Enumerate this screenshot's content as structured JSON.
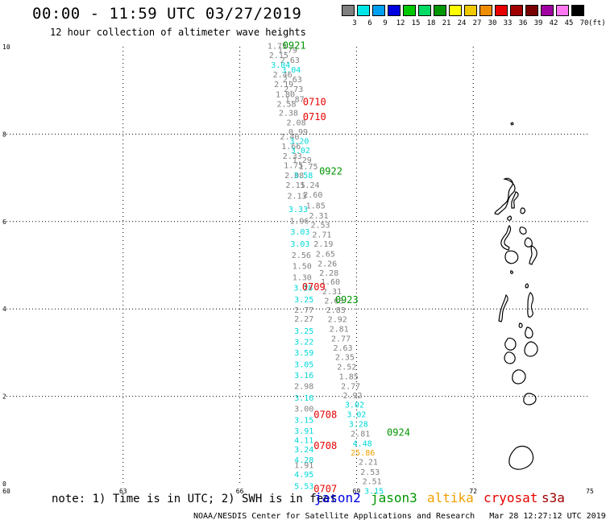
{
  "header": {
    "title": "00:00 - 11:59 UTC 03/27/2019",
    "subtitle": "12 hour collection of altimeter wave heights"
  },
  "legend": {
    "colors": [
      "#808080",
      "#00e6e6",
      "#00a0f0",
      "#0000e0",
      "#00c800",
      "#00dc64",
      "#009600",
      "#ffff00",
      "#f0c800",
      "#f08c00",
      "#e60000",
      "#a00000",
      "#780000",
      "#a000a0",
      "#ff78f0",
      "#000000"
    ],
    "labels": [
      "3",
      "6",
      "9",
      "12",
      "15",
      "18",
      "21",
      "24",
      "27",
      "30",
      "33",
      "36",
      "39",
      "42",
      "45",
      "70"
    ],
    "unit": "(ft)"
  },
  "axes": {
    "x_ticks": [
      "60",
      "63",
      "66",
      "69",
      "72",
      "75"
    ],
    "y_ticks": [
      "0",
      "2",
      "4",
      "6",
      "8",
      "10"
    ]
  },
  "colors": {
    "gray": "#808080",
    "cyan": "#00d8d8",
    "red": "#e60000",
    "green": "#009600",
    "orange": "#f0a000",
    "blue": "#0000e6",
    "s3a": "#a00000"
  },
  "observations": [
    {
      "text": "1.75",
      "c": "gray",
      "lon": 66.71,
      "lat": 9.95
    },
    {
      "text": "1.79",
      "c": "gray",
      "lon": 66.98,
      "lat": 9.86
    },
    {
      "text": "2.15",
      "c": "gray",
      "lon": 66.75,
      "lat": 9.74
    },
    {
      "text": "2.63",
      "c": "gray",
      "lon": 67.04,
      "lat": 9.63
    },
    {
      "text": "3.04",
      "c": "cyan",
      "lon": 66.8,
      "lat": 9.52
    },
    {
      "text": "3.04",
      "c": "cyan",
      "lon": 67.07,
      "lat": 9.41
    },
    {
      "text": "2.46",
      "c": "gray",
      "lon": 66.85,
      "lat": 9.3
    },
    {
      "text": "2.63",
      "c": "gray",
      "lon": 67.1,
      "lat": 9.19
    },
    {
      "text": "2.19",
      "c": "gray",
      "lon": 66.88,
      "lat": 9.08
    },
    {
      "text": "2.73",
      "c": "gray",
      "lon": 67.13,
      "lat": 8.97
    },
    {
      "text": "1.80",
      "c": "gray",
      "lon": 66.92,
      "lat": 8.85
    },
    {
      "text": "1.87",
      "c": "gray",
      "lon": 67.16,
      "lat": 8.74
    },
    {
      "text": "2.58",
      "c": "gray",
      "lon": 66.95,
      "lat": 8.63
    },
    {
      "text": "2.38",
      "c": "gray",
      "lon": 67.0,
      "lat": 8.42
    },
    {
      "text": "2.08",
      "c": "gray",
      "lon": 67.2,
      "lat": 8.2
    },
    {
      "text": "0.99",
      "c": "gray",
      "lon": 67.25,
      "lat": 7.99
    },
    {
      "text": "2.40",
      "c": "gray",
      "lon": 67.03,
      "lat": 7.88
    },
    {
      "text": "3.20",
      "c": "cyan",
      "lon": 67.28,
      "lat": 7.78
    },
    {
      "text": "1.66",
      "c": "gray",
      "lon": 67.07,
      "lat": 7.66
    },
    {
      "text": "3.02",
      "c": "cyan",
      "lon": 67.31,
      "lat": 7.56
    },
    {
      "text": "2.33",
      "c": "gray",
      "lon": 67.1,
      "lat": 7.44
    },
    {
      "text": "1.29",
      "c": "gray",
      "lon": 67.35,
      "lat": 7.34
    },
    {
      "text": "1.75",
      "c": "gray",
      "lon": 67.13,
      "lat": 7.22
    },
    {
      "text": "1.75",
      "c": "gray",
      "lon": 67.51,
      "lat": 7.2
    },
    {
      "text": "2.08",
      "c": "gray",
      "lon": 67.15,
      "lat": 6.99
    },
    {
      "text": "3.58",
      "c": "cyan",
      "lon": 67.38,
      "lat": 6.99
    },
    {
      "text": "2.15",
      "c": "gray",
      "lon": 67.18,
      "lat": 6.77
    },
    {
      "text": "1.24",
      "c": "gray",
      "lon": 67.55,
      "lat": 6.77
    },
    {
      "text": "2.60",
      "c": "gray",
      "lon": 67.63,
      "lat": 6.55
    },
    {
      "text": "2.13",
      "c": "gray",
      "lon": 67.22,
      "lat": 6.52
    },
    {
      "text": "1.85",
      "c": "gray",
      "lon": 67.7,
      "lat": 6.3
    },
    {
      "text": "3.33",
      "c": "cyan",
      "lon": 67.25,
      "lat": 6.22
    },
    {
      "text": "2.31",
      "c": "gray",
      "lon": 67.78,
      "lat": 6.07
    },
    {
      "text": "1.96",
      "c": "gray",
      "lon": 67.28,
      "lat": 5.95
    },
    {
      "text": "2.53",
      "c": "gray",
      "lon": 67.82,
      "lat": 5.86
    },
    {
      "text": "3.03",
      "c": "cyan",
      "lon": 67.3,
      "lat": 5.7
    },
    {
      "text": "2.71",
      "c": "gray",
      "lon": 67.86,
      "lat": 5.64
    },
    {
      "text": "3.03",
      "c": "cyan",
      "lon": 67.3,
      "lat": 5.42
    },
    {
      "text": "2.19",
      "c": "gray",
      "lon": 67.9,
      "lat": 5.42
    },
    {
      "text": "2.56",
      "c": "gray",
      "lon": 67.33,
      "lat": 5.17
    },
    {
      "text": "2.65",
      "c": "gray",
      "lon": 67.95,
      "lat": 5.19
    },
    {
      "text": "2.26",
      "c": "gray",
      "lon": 68.0,
      "lat": 4.97
    },
    {
      "text": "1.50",
      "c": "gray",
      "lon": 67.35,
      "lat": 4.92
    },
    {
      "text": "2.28",
      "c": "gray",
      "lon": 68.04,
      "lat": 4.76
    },
    {
      "text": "1.30",
      "c": "gray",
      "lon": 67.35,
      "lat": 4.66
    },
    {
      "text": "1.60",
      "c": "gray",
      "lon": 68.08,
      "lat": 4.56
    },
    {
      "text": "3.18",
      "c": "cyan",
      "lon": 67.38,
      "lat": 4.42
    },
    {
      "text": "2.31",
      "c": "gray",
      "lon": 68.12,
      "lat": 4.34
    },
    {
      "text": "3.25",
      "c": "cyan",
      "lon": 67.4,
      "lat": 4.15
    },
    {
      "text": "2.63",
      "c": "gray",
      "lon": 68.17,
      "lat": 4.12
    },
    {
      "text": "2.77",
      "c": "gray",
      "lon": 67.4,
      "lat": 3.91
    },
    {
      "text": "2.83",
      "c": "gray",
      "lon": 68.22,
      "lat": 3.91
    },
    {
      "text": "2.27",
      "c": "gray",
      "lon": 67.4,
      "lat": 3.71
    },
    {
      "text": "2.92",
      "c": "gray",
      "lon": 68.26,
      "lat": 3.7
    },
    {
      "text": "3.25",
      "c": "cyan",
      "lon": 67.4,
      "lat": 3.43
    },
    {
      "text": "2.81",
      "c": "gray",
      "lon": 68.3,
      "lat": 3.48
    },
    {
      "text": "3.22",
      "c": "cyan",
      "lon": 67.4,
      "lat": 3.18
    },
    {
      "text": "2.77",
      "c": "gray",
      "lon": 68.35,
      "lat": 3.26
    },
    {
      "text": "3.59",
      "c": "cyan",
      "lon": 67.4,
      "lat": 2.93
    },
    {
      "text": "2.63",
      "c": "gray",
      "lon": 68.4,
      "lat": 3.04
    },
    {
      "text": "3.05",
      "c": "cyan",
      "lon": 67.4,
      "lat": 2.67
    },
    {
      "text": "2.35",
      "c": "gray",
      "lon": 68.45,
      "lat": 2.83
    },
    {
      "text": "2.52",
      "c": "gray",
      "lon": 68.5,
      "lat": 2.61
    },
    {
      "text": "3.16",
      "c": "cyan",
      "lon": 67.4,
      "lat": 2.42
    },
    {
      "text": "1.85",
      "c": "gray",
      "lon": 68.55,
      "lat": 2.39
    },
    {
      "text": "2.98",
      "c": "gray",
      "lon": 67.4,
      "lat": 2.17
    },
    {
      "text": "2.77",
      "c": "gray",
      "lon": 68.6,
      "lat": 2.17
    },
    {
      "text": "2.92",
      "c": "gray",
      "lon": 68.65,
      "lat": 1.96
    },
    {
      "text": "3.16",
      "c": "cyan",
      "lon": 67.4,
      "lat": 1.9
    },
    {
      "text": "3.00",
      "c": "gray",
      "lon": 67.4,
      "lat": 1.65
    },
    {
      "text": "3.02",
      "c": "cyan",
      "lon": 68.7,
      "lat": 1.74
    },
    {
      "text": "3.02",
      "c": "cyan",
      "lon": 68.75,
      "lat": 1.52
    },
    {
      "text": "3.15",
      "c": "cyan",
      "lon": 67.4,
      "lat": 1.39
    },
    {
      "text": "3.28",
      "c": "cyan",
      "lon": 68.8,
      "lat": 1.3
    },
    {
      "text": "3.91",
      "c": "cyan",
      "lon": 67.4,
      "lat": 1.14
    },
    {
      "text": "2.81",
      "c": "gray",
      "lon": 68.85,
      "lat": 1.08
    },
    {
      "text": "4.11",
      "c": "cyan",
      "lon": 67.4,
      "lat": 0.93
    },
    {
      "text": "4.48",
      "c": "cyan",
      "lon": 68.9,
      "lat": 0.86
    },
    {
      "text": "3.24",
      "c": "cyan",
      "lon": 67.4,
      "lat": 0.72
    },
    {
      "text": "25.86",
      "c": "orange",
      "lon": 68.85,
      "lat": 0.65
    },
    {
      "text": "4.28",
      "c": "cyan",
      "lon": 67.4,
      "lat": 0.48
    },
    {
      "text": "2.21",
      "c": "gray",
      "lon": 69.05,
      "lat": 0.43
    },
    {
      "text": "1.91",
      "c": "gray",
      "lon": 67.4,
      "lat": 0.36
    },
    {
      "text": "2.53",
      "c": "gray",
      "lon": 69.1,
      "lat": 0.2
    },
    {
      "text": "4.95",
      "c": "cyan",
      "lon": 67.4,
      "lat": 0.15
    },
    {
      "text": "2.51",
      "c": "gray",
      "lon": 69.15,
      "lat": -0.01
    },
    {
      "text": "5.53",
      "c": "cyan",
      "lon": 67.4,
      "lat": -0.12
    },
    {
      "text": "3.15",
      "c": "cyan",
      "lon": 69.2,
      "lat": -0.23
    }
  ],
  "passes": [
    {
      "text": "0921",
      "c": "green",
      "lon": 67.1,
      "lat": 9.95
    },
    {
      "text": "0710",
      "c": "red",
      "lon": 67.62,
      "lat": 8.66
    },
    {
      "text": "0710",
      "c": "red",
      "lon": 67.62,
      "lat": 8.32
    },
    {
      "text": "0922",
      "c": "green",
      "lon": 68.04,
      "lat": 7.08
    },
    {
      "text": "0709",
      "c": "red",
      "lon": 67.6,
      "lat": 4.43
    },
    {
      "text": "0923",
      "c": "green",
      "lon": 68.45,
      "lat": 4.13
    },
    {
      "text": "0708",
      "c": "red",
      "lon": 67.9,
      "lat": 1.5
    },
    {
      "text": "0924",
      "c": "green",
      "lon": 69.78,
      "lat": 1.1
    },
    {
      "text": "0708",
      "c": "red",
      "lon": 67.9,
      "lat": 0.79
    },
    {
      "text": "0707",
      "c": "red",
      "lon": 67.9,
      "lat": -0.19
    }
  ],
  "footer": {
    "note": "note: 1) Time is in UTC; 2) SWH is in feet",
    "satellites": [
      {
        "name": "jason2",
        "c": "blue"
      },
      {
        "name": "jason3",
        "c": "green"
      },
      {
        "name": "altika",
        "c": "orange"
      },
      {
        "name": "cryosat",
        "c": "red"
      },
      {
        "name": "s3a",
        "c": "s3a"
      }
    ],
    "credit": "NOAA/NESDIS Center for Satellite Applications and Research   Mar 28 12:27:12 UTC 2019"
  }
}
